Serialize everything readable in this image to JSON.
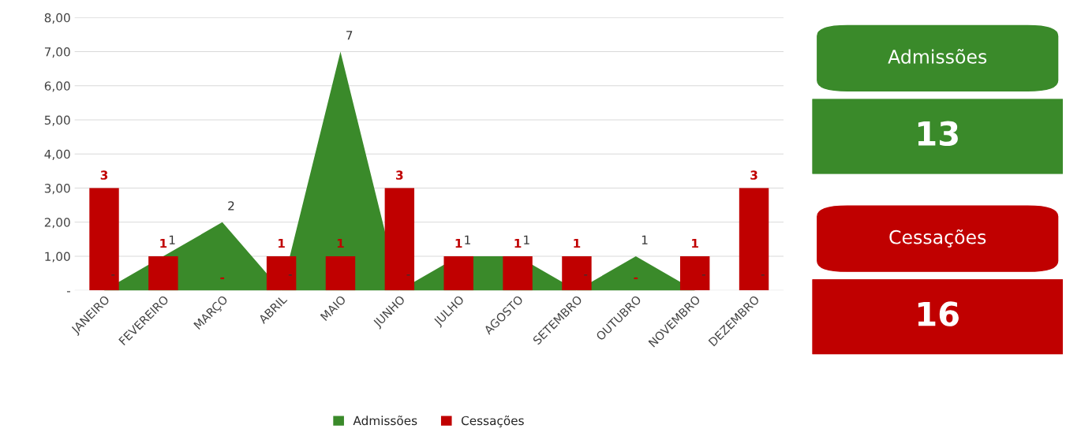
{
  "chart_data": [
    {
      "type": "area",
      "categories": [
        "JANEIRO",
        "FEVEREIRO",
        "MARÇO",
        "ABRIL",
        "MAIO",
        "JUNHO",
        "JULHO",
        "AGOSTO",
        "SETEMBRO",
        "OUTUBRO",
        "NOVEMBRO",
        "DEZEMBRO"
      ],
      "series": [
        {
          "name": "Admissões",
          "type": "area",
          "color": "#3a8a2a",
          "values": [
            0,
            1,
            2,
            0,
            7,
            0,
            1,
            1,
            0,
            1,
            0,
            0
          ],
          "value_labels": [
            "-",
            "1",
            "2",
            "-",
            "7",
            "-",
            "1",
            "1",
            "-",
            "1",
            "-",
            "-"
          ]
        },
        {
          "name": "Cessações",
          "type": "bar",
          "color": "#c00000",
          "values": [
            3,
            1,
            0,
            1,
            1,
            3,
            1,
            1,
            1,
            0,
            1,
            3
          ],
          "value_labels": [
            "3",
            "1",
            "-",
            "1",
            "1",
            "3",
            "1",
            "1",
            "1",
            "-",
            "1",
            "3"
          ]
        }
      ],
      "ylim": [
        0,
        8
      ],
      "yticks": [
        {
          "value": 0,
          "label": "-"
        },
        {
          "value": 1,
          "label": "1,00"
        },
        {
          "value": 2,
          "label": "2,00"
        },
        {
          "value": 3,
          "label": "3,00"
        },
        {
          "value": 4,
          "label": "4,00"
        },
        {
          "value": 5,
          "label": "5,00"
        },
        {
          "value": 6,
          "label": "6,00"
        },
        {
          "value": 7,
          "label": "7,00"
        },
        {
          "value": 8,
          "label": "8,00"
        }
      ],
      "grid": "y",
      "legend": "bottom"
    },
    {
      "type": "other",
      "title": "Admissões",
      "annotations": [
        "13"
      ],
      "color": "#3a8a2a"
    },
    {
      "type": "other",
      "title": "Cessações",
      "annotations": [
        "16"
      ],
      "color": "#c00000"
    }
  ]
}
